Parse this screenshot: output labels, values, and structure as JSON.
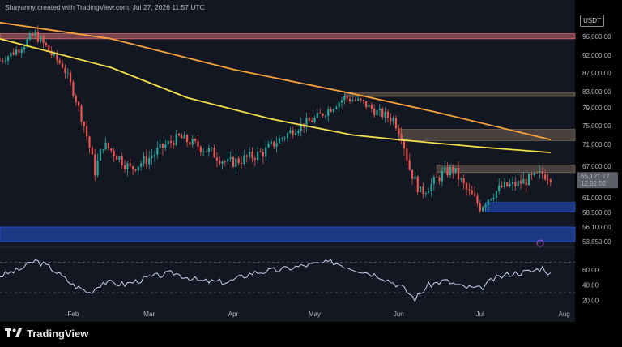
{
  "header": {
    "attribution": "Shayanny created with TradingView.com, Jul 27, 2026 11:57 UTC"
  },
  "price_scale": {
    "currency": "USDT"
  },
  "footer": {
    "brand": "TradingView"
  },
  "colors": {
    "background": "#131722",
    "up": "#26a69a",
    "down": "#ef5350",
    "ma_200": "#f7a23b",
    "ma_100": "#f4e04d",
    "resistance_zone": "#f77c80",
    "supply_zone": "#8a7560",
    "demand_zone": "#2962ff",
    "rsi_line": "#c8d4f0",
    "last_price_tag": "#5d606b"
  },
  "chart_data": [
    {
      "type": "candlestick",
      "x_ticks": [
        "Feb",
        "Mar",
        "Apr",
        "May",
        "Jun",
        "Jul",
        "Aug"
      ],
      "y_ticks": [
        "96,000.00",
        "92,000.00",
        "87,000.00",
        "83,000.00",
        "79,000.00",
        "75,000.00",
        "71,000.00",
        "67,000.00",
        "61,000.00",
        "58,500.00",
        "56,100.00",
        "53,850.00"
      ],
      "y_tick_values": [
        96000,
        92000,
        87000,
        83000,
        79000,
        75000,
        71000,
        67000,
        61000,
        58500,
        56100,
        53850
      ],
      "last_price": {
        "label": "65,121.77",
        "countdown": "12:02:02",
        "value": 65121.77
      },
      "x_range": [
        "2026-01-05",
        "2026-08-05"
      ],
      "price_path_key_points": [
        [
          "2026-01-05",
          90500
        ],
        [
          "2026-01-12",
          93500
        ],
        [
          "2026-01-18",
          96500
        ],
        [
          "2026-01-23",
          93000
        ],
        [
          "2026-01-28",
          89000
        ],
        [
          "2026-02-01",
          83000
        ],
        [
          "2026-02-05",
          75000
        ],
        [
          "2026-02-09",
          66000
        ],
        [
          "2026-02-12",
          71000
        ],
        [
          "2026-02-16",
          69500
        ],
        [
          "2026-02-22",
          66500
        ],
        [
          "2026-03-01",
          68500
        ],
        [
          "2026-03-06",
          70500
        ],
        [
          "2026-03-12",
          72500
        ],
        [
          "2026-03-18",
          71000
        ],
        [
          "2026-03-24",
          69500
        ],
        [
          "2026-03-30",
          67500
        ],
        [
          "2026-04-06",
          68500
        ],
        [
          "2026-04-12",
          69500
        ],
        [
          "2026-04-18",
          72000
        ],
        [
          "2026-04-24",
          74500
        ],
        [
          "2026-05-01",
          76500
        ],
        [
          "2026-05-07",
          79000
        ],
        [
          "2026-05-12",
          81500
        ],
        [
          "2026-05-18",
          80500
        ],
        [
          "2026-05-24",
          78000
        ],
        [
          "2026-05-30",
          76500
        ],
        [
          "2026-06-02",
          73000
        ],
        [
          "2026-06-05",
          66500
        ],
        [
          "2026-06-09",
          62000
        ],
        [
          "2026-06-13",
          63500
        ],
        [
          "2026-06-17",
          65500
        ],
        [
          "2026-06-21",
          66500
        ],
        [
          "2026-06-26",
          62500
        ],
        [
          "2026-07-01",
          59500
        ],
        [
          "2026-07-05",
          61500
        ],
        [
          "2026-07-09",
          63000
        ],
        [
          "2026-07-14",
          63500
        ],
        [
          "2026-07-19",
          64500
        ],
        [
          "2026-07-24",
          65500
        ],
        [
          "2026-07-27",
          65121.77
        ]
      ],
      "moving_averages": [
        {
          "color_key": "ma_200",
          "points": [
            [
              "2026-01-05",
              99000
            ],
            [
              "2026-02-15",
              95500
            ],
            [
              "2026-04-01",
              88000
            ],
            [
              "2026-05-15",
              82500
            ],
            [
              "2026-06-15",
              78000
            ],
            [
              "2026-07-27",
              72000
            ]
          ]
        },
        {
          "color_key": "ma_100",
          "points": [
            [
              "2026-01-05",
              95500
            ],
            [
              "2026-02-15",
              88500
            ],
            [
              "2026-03-15",
              81500
            ],
            [
              "2026-04-15",
              76500
            ],
            [
              "2026-05-15",
              73000
            ],
            [
              "2026-06-01",
              72000
            ],
            [
              "2026-07-01",
              70500
            ],
            [
              "2026-07-27",
              69500
            ]
          ]
        }
      ],
      "zones": [
        {
          "color_key": "resistance_zone",
          "from": "2026-01-05",
          "to": "2026-08-05",
          "low": 95500,
          "high": 96600
        },
        {
          "color_key": "supply_zone",
          "from": "2026-05-12",
          "to": "2026-08-05",
          "low": 81800,
          "high": 82800
        },
        {
          "color_key": "supply_zone",
          "from": "2026-06-01",
          "to": "2026-08-05",
          "low": 71800,
          "high": 74200
        },
        {
          "color_key": "supply_zone",
          "from": "2026-06-15",
          "to": "2026-08-05",
          "low": 65800,
          "high": 67200
        },
        {
          "color_key": "demand_zone",
          "from": "2026-07-03",
          "to": "2026-08-05",
          "low": 58600,
          "high": 60200
        },
        {
          "color_key": "demand_zone",
          "from": "2026-01-05",
          "to": "2026-08-05",
          "low": 53850,
          "high": 56100
        }
      ]
    },
    {
      "type": "line",
      "name": "RSI",
      "y_ticks": [
        "60.00",
        "40.00",
        "20.00"
      ],
      "y_tick_values": [
        60,
        40,
        20
      ],
      "levels": [
        70,
        30
      ],
      "ylim": [
        10,
        82
      ],
      "x_range": [
        "2026-01-05",
        "2026-08-05"
      ],
      "key_points": [
        [
          "2026-01-05",
          52
        ],
        [
          "2026-01-12",
          60
        ],
        [
          "2026-01-18",
          72
        ],
        [
          "2026-01-24",
          62
        ],
        [
          "2026-02-01",
          40
        ],
        [
          "2026-02-07",
          30
        ],
        [
          "2026-02-12",
          44
        ],
        [
          "2026-02-20",
          41
        ],
        [
          "2026-03-01",
          50
        ],
        [
          "2026-03-10",
          56
        ],
        [
          "2026-03-20",
          45
        ],
        [
          "2026-03-30",
          44
        ],
        [
          "2026-04-08",
          56
        ],
        [
          "2026-04-18",
          60
        ],
        [
          "2026-04-28",
          66
        ],
        [
          "2026-05-08",
          70
        ],
        [
          "2026-05-15",
          62
        ],
        [
          "2026-05-25",
          52
        ],
        [
          "2026-06-02",
          38
        ],
        [
          "2026-06-07",
          22
        ],
        [
          "2026-06-12",
          40
        ],
        [
          "2026-06-18",
          46
        ],
        [
          "2026-06-24",
          38
        ],
        [
          "2026-07-01",
          35
        ],
        [
          "2026-07-06",
          48
        ],
        [
          "2026-07-12",
          55
        ],
        [
          "2026-07-20",
          58
        ],
        [
          "2026-07-24",
          63
        ],
        [
          "2026-07-27",
          54
        ]
      ]
    }
  ]
}
